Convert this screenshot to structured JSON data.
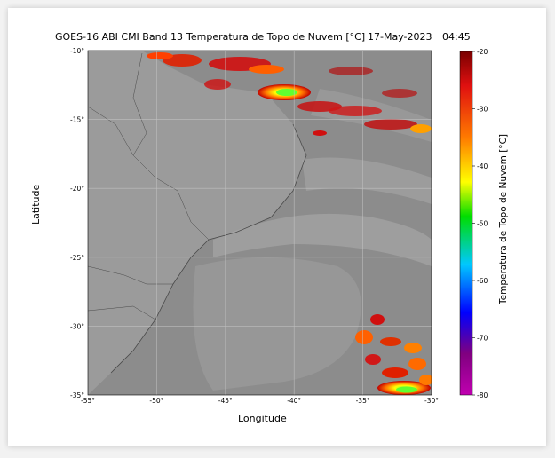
{
  "title": {
    "product": "GOES-16 ABI CMI Band 13",
    "variable": "Temperatura de Topo de Nuvem [°C]",
    "date": "17-May-2023",
    "time": "04:45"
  },
  "map": {
    "xlabel": "Longitude",
    "ylabel": "Latitude",
    "lon_ticks": [
      "-55°",
      "-50°",
      "-45°",
      "-40°",
      "-35°",
      "-30°"
    ],
    "lat_ticks": [
      "-10°",
      "-15°",
      "-20°",
      "-25°",
      "-30°",
      "-35°"
    ],
    "lon_range": [
      -55,
      -30
    ],
    "lat_range": [
      -35,
      -10
    ],
    "gridlines": true,
    "base_color": "#8a8a8a"
  },
  "colorbar": {
    "label": "Temperatura de Topo de Nuvem [°C]",
    "ticks": [
      "-20",
      "-30",
      "-40",
      "-50",
      "-60",
      "-70",
      "-80"
    ],
    "colors": [
      "#7a0000",
      "#e01010",
      "#ff7a00",
      "#ffff00",
      "#00dd00",
      "#00c8ff",
      "#0000ff",
      "#800080",
      "#c000b0"
    ]
  }
}
